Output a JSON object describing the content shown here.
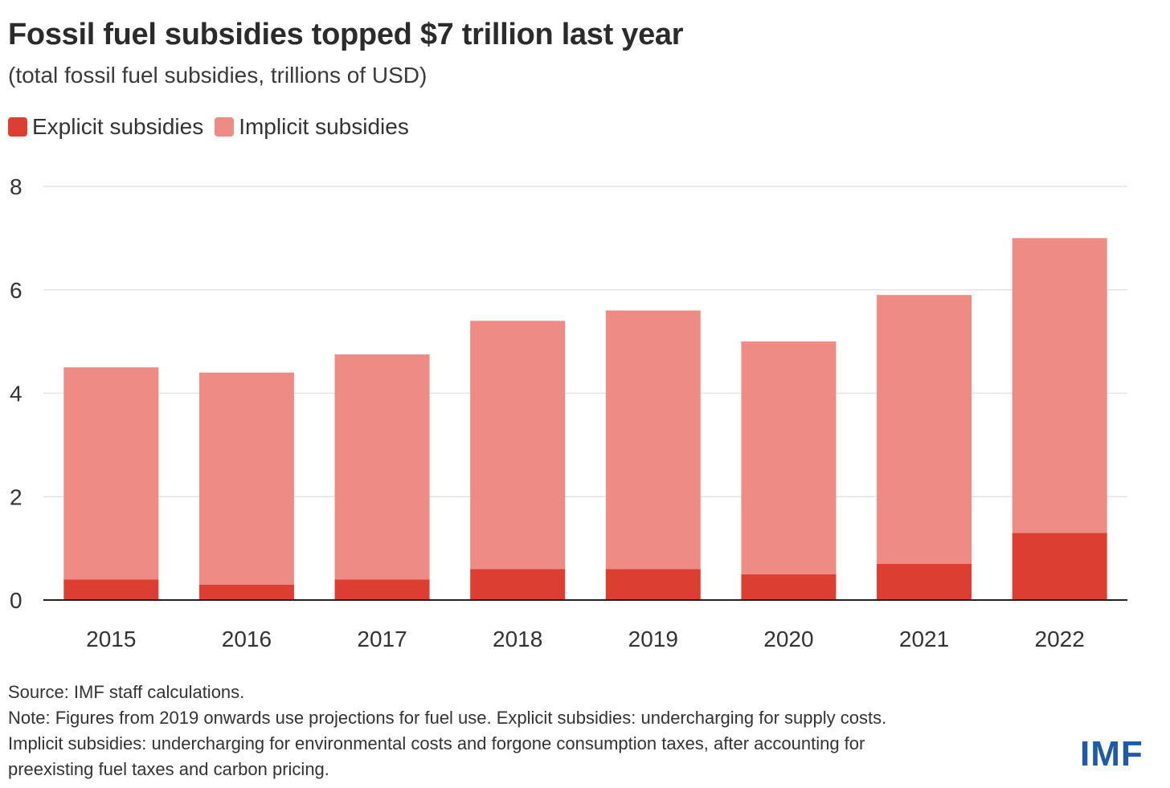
{
  "title": "Fossil fuel subsidies topped $7 trillion last year",
  "subtitle": "(total fossil fuel subsidies, trillions of USD)",
  "legend": [
    {
      "label": "Explicit subsidies",
      "color": "#dc3f32"
    },
    {
      "label": "Implicit subsidies",
      "color": "#ec8c84"
    }
  ],
  "chart_data": {
    "type": "bar",
    "stacked": true,
    "categories": [
      "2015",
      "2016",
      "2017",
      "2018",
      "2019",
      "2020",
      "2021",
      "2022"
    ],
    "series": [
      {
        "name": "Explicit subsidies",
        "color": "#dc3f32",
        "values": [
          0.4,
          0.3,
          0.4,
          0.6,
          0.6,
          0.5,
          0.7,
          1.3
        ]
      },
      {
        "name": "Implicit subsidies",
        "color": "#ec8c84",
        "values": [
          4.1,
          4.1,
          4.35,
          4.8,
          5.0,
          4.5,
          5.2,
          5.7
        ]
      }
    ],
    "totals": [
      4.5,
      4.4,
      4.75,
      5.4,
      5.6,
      5.0,
      5.9,
      7.0
    ],
    "yticks": [
      0,
      2,
      4,
      6,
      8
    ],
    "ylim": [
      0,
      8
    ],
    "grid": true
  },
  "notes": {
    "source": "Source: IMF staff calculations.",
    "note_line1": "Note: Figures from 2019 onwards use projections for fuel use. Explicit subsidies: undercharging for supply costs.",
    "note_line2": "Implicit subsidies: undercharging for environmental costs and forgone consumption taxes, after accounting for",
    "note_line3": "preexisting fuel taxes and carbon pricing."
  },
  "logo": "IMF"
}
